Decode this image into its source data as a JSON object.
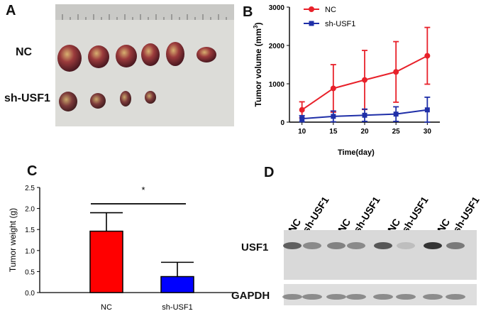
{
  "panels": {
    "a": {
      "letter": "A",
      "row_labels": [
        "NC",
        "sh-USF1"
      ],
      "nc_tumor_count": 6,
      "sh_tumor_count": 4
    },
    "b": {
      "letter": "B",
      "y_label_main": "Tumor volume (mm",
      "y_label_sup": "3",
      "y_label_tail": ")",
      "x_label": "Time(day)"
    },
    "c": {
      "letter": "C",
      "y_label": "Tumor weight (g)",
      "significance": "*"
    },
    "d": {
      "letter": "D",
      "lane_labels": [
        "NC",
        "sh-USF1",
        "NC",
        "sh-USF1",
        "NC",
        "sh-USF1",
        "NC",
        "sh-USF1"
      ],
      "row_labels": [
        "USF1",
        "GAPDH"
      ],
      "usf1_band_intensity": [
        0.7,
        0.45,
        0.5,
        0.45,
        0.75,
        0.15,
        0.95,
        0.55
      ],
      "gapdh_band_intensity": [
        0.5,
        0.5,
        0.5,
        0.5,
        0.5,
        0.5,
        0.5,
        0.5
      ]
    }
  },
  "chart_data": [
    {
      "id": "B",
      "type": "line",
      "title": "",
      "xlabel": "Time(day)",
      "ylabel": "Tumor volume (mm3)",
      "x": [
        10,
        15,
        20,
        25,
        30
      ],
      "xlim": [
        8,
        32
      ],
      "ylim": [
        0,
        3000
      ],
      "yticks": [
        0,
        1000,
        2000,
        3000
      ],
      "series": [
        {
          "name": "NC",
          "color": "#e8212a",
          "marker": "circle",
          "values": [
            320,
            880,
            1100,
            1310,
            1730
          ],
          "errors": [
            210,
            620,
            770,
            790,
            740
          ]
        },
        {
          "name": "sh-USF1",
          "color": "#1f2fa8",
          "marker": "square",
          "values": [
            90,
            150,
            180,
            210,
            320
          ],
          "errors": [
            80,
            140,
            160,
            190,
            330
          ]
        }
      ],
      "legend": "top-left"
    },
    {
      "id": "C",
      "type": "bar",
      "title": "",
      "xlabel": "",
      "ylabel": "Tumor weight (g)",
      "categories": [
        "NC",
        "sh-USF1"
      ],
      "values": [
        1.46,
        0.38
      ],
      "errors": [
        0.44,
        0.34
      ],
      "colors": [
        "#ff0000",
        "#0000ff"
      ],
      "ylim": [
        0,
        2.5
      ],
      "yticks": [
        "0.0",
        "0.5",
        "1.0",
        "1.5",
        "2.0",
        "2.5"
      ]
    }
  ]
}
